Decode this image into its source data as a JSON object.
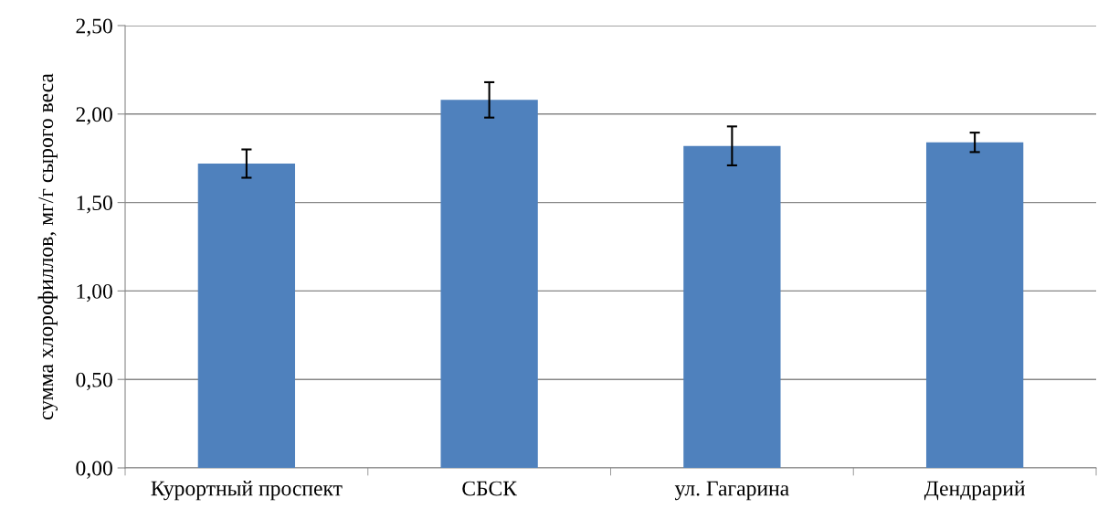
{
  "chart_data": {
    "type": "bar",
    "ylabel": "сумма хлорофиллов, мг/г сырого веса",
    "categories": [
      "Курортный проспект",
      "СБСК",
      "ул. Гагарина",
      "Дендрарий"
    ],
    "values": [
      1.72,
      2.08,
      1.82,
      1.84
    ],
    "errors": [
      0.08,
      0.1,
      0.11,
      0.055
    ],
    "color": "#4f81bd",
    "ylim": [
      0,
      2.5
    ],
    "yticks": [
      {
        "value": 0,
        "label": "0,00"
      },
      {
        "value": 0.5,
        "label": "0,50"
      },
      {
        "value": 1.0,
        "label": "1,00"
      },
      {
        "value": 1.5,
        "label": "1,50"
      },
      {
        "value": 2.0,
        "label": "2,00"
      },
      {
        "value": 2.5,
        "label": "2,50"
      }
    ],
    "grid": "y"
  }
}
